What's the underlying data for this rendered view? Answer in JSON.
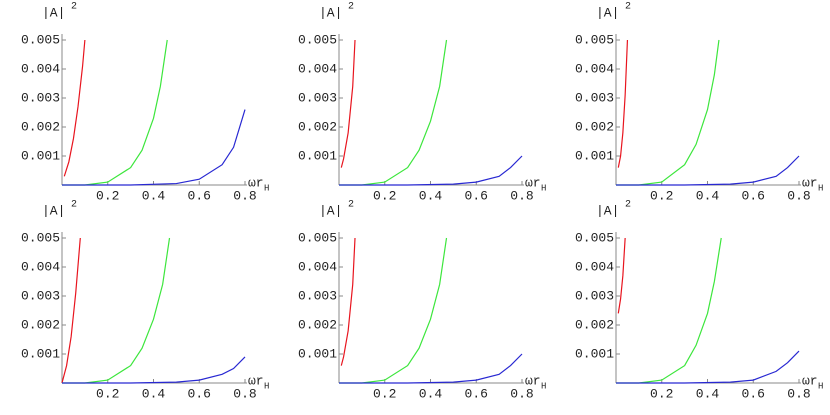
{
  "chart_data": [
    {
      "type": "line",
      "ylabel": "|A|",
      "ylabel_sup": "2",
      "xlabel": "ωr",
      "xlabel_sub": "H",
      "xlim": [
        0,
        0.8
      ],
      "ylim": [
        0,
        0.005
      ],
      "xticks": [
        0.2,
        0.4,
        0.6,
        0.8
      ],
      "yticks": [
        0.001,
        0.002,
        0.003,
        0.004,
        0.005
      ],
      "series": [
        {
          "color": "#e8141e",
          "x": [
            0.01,
            0.03,
            0.05,
            0.07,
            0.09,
            0.1
          ],
          "values": [
            0.0003,
            0.0008,
            0.0016,
            0.0027,
            0.0041,
            0.005
          ]
        },
        {
          "color": "#3ce63c",
          "x": [
            0,
            0.1,
            0.2,
            0.3,
            0.35,
            0.4,
            0.43,
            0.46
          ],
          "values": [
            0,
            0,
            0.0001,
            0.0006,
            0.0012,
            0.0023,
            0.0034,
            0.005
          ]
        },
        {
          "color": "#2828d2",
          "x": [
            0,
            0.3,
            0.5,
            0.6,
            0.7,
            0.75,
            0.8
          ],
          "values": [
            0,
            0,
            5e-05,
            0.0002,
            0.0007,
            0.0013,
            0.0026
          ]
        }
      ]
    },
    {
      "type": "line",
      "ylabel": "|A|",
      "ylabel_sup": "2",
      "xlabel": "ωr",
      "xlabel_sub": "H",
      "xlim": [
        0,
        0.8
      ],
      "ylim": [
        0,
        0.005
      ],
      "xticks": [
        0.2,
        0.4,
        0.6,
        0.8
      ],
      "yticks": [
        0.001,
        0.002,
        0.003,
        0.004,
        0.005
      ],
      "series": [
        {
          "color": "#e8141e",
          "x": [
            0.01,
            0.02,
            0.04,
            0.06,
            0.07
          ],
          "values": [
            0.0006,
            0.0009,
            0.0018,
            0.0034,
            0.005
          ]
        },
        {
          "color": "#3ce63c",
          "x": [
            0,
            0.1,
            0.2,
            0.3,
            0.35,
            0.4,
            0.44,
            0.47
          ],
          "values": [
            0,
            0,
            0.0001,
            0.0006,
            0.0012,
            0.0022,
            0.0034,
            0.005
          ]
        },
        {
          "color": "#2828d2",
          "x": [
            0,
            0.3,
            0.5,
            0.6,
            0.7,
            0.75,
            0.8
          ],
          "values": [
            0,
            0,
            3e-05,
            0.0001,
            0.0003,
            0.0006,
            0.001
          ]
        }
      ]
    },
    {
      "type": "line",
      "ylabel": "|A|",
      "ylabel_sup": "2",
      "xlabel": "ωr",
      "xlabel_sub": "H",
      "xlim": [
        0,
        0.8
      ],
      "ylim": [
        0,
        0.005
      ],
      "xticks": [
        0.2,
        0.4,
        0.6,
        0.8
      ],
      "yticks": [
        0.001,
        0.002,
        0.003,
        0.004,
        0.005
      ],
      "series": [
        {
          "color": "#e8141e",
          "x": [
            0.01,
            0.02,
            0.03,
            0.04,
            0.05
          ],
          "values": [
            0.0006,
            0.001,
            0.0018,
            0.0031,
            0.005
          ]
        },
        {
          "color": "#3ce63c",
          "x": [
            0,
            0.1,
            0.2,
            0.3,
            0.35,
            0.4,
            0.43,
            0.45
          ],
          "values": [
            0,
            0,
            0.0001,
            0.0007,
            0.0014,
            0.0026,
            0.0038,
            0.005
          ]
        },
        {
          "color": "#2828d2",
          "x": [
            0,
            0.3,
            0.5,
            0.6,
            0.7,
            0.75,
            0.8
          ],
          "values": [
            0,
            0,
            3e-05,
            0.0001,
            0.0003,
            0.0006,
            0.001
          ]
        }
      ]
    },
    {
      "type": "line",
      "ylabel": "|A|",
      "ylabel_sup": "2",
      "xlabel": "ωr",
      "xlabel_sub": "H",
      "xlim": [
        0,
        0.8
      ],
      "ylim": [
        0,
        0.005
      ],
      "xticks": [
        0.2,
        0.4,
        0.6,
        0.8
      ],
      "yticks": [
        0.001,
        0.002,
        0.003,
        0.004,
        0.005
      ],
      "series": [
        {
          "color": "#e8141e",
          "x": [
            0,
            0.02,
            0.04,
            0.06,
            0.08
          ],
          "values": [
            0,
            0.0006,
            0.0016,
            0.0031,
            0.005
          ]
        },
        {
          "color": "#3ce63c",
          "x": [
            0,
            0.1,
            0.2,
            0.3,
            0.35,
            0.4,
            0.44,
            0.47
          ],
          "values": [
            0,
            0,
            0.0001,
            0.0006,
            0.0012,
            0.0022,
            0.0034,
            0.005
          ]
        },
        {
          "color": "#2828d2",
          "x": [
            0,
            0.3,
            0.5,
            0.6,
            0.7,
            0.75,
            0.8
          ],
          "values": [
            0,
            0,
            3e-05,
            0.0001,
            0.0003,
            0.0005,
            0.0009
          ]
        }
      ]
    },
    {
      "type": "line",
      "ylabel": "|A|",
      "ylabel_sup": "2",
      "xlabel": "ωr",
      "xlabel_sub": "H",
      "xlim": [
        0,
        0.8
      ],
      "ylim": [
        0,
        0.005
      ],
      "xticks": [
        0.2,
        0.4,
        0.6,
        0.8
      ],
      "yticks": [
        0.001,
        0.002,
        0.003,
        0.004,
        0.005
      ],
      "series": [
        {
          "color": "#e8141e",
          "x": [
            0.01,
            0.02,
            0.04,
            0.06,
            0.07
          ],
          "values": [
            0.0006,
            0.0009,
            0.0018,
            0.0034,
            0.005
          ]
        },
        {
          "color": "#3ce63c",
          "x": [
            0,
            0.1,
            0.2,
            0.3,
            0.35,
            0.4,
            0.44,
            0.47
          ],
          "values": [
            0,
            0,
            0.0001,
            0.0006,
            0.0012,
            0.0022,
            0.0034,
            0.005
          ]
        },
        {
          "color": "#2828d2",
          "x": [
            0,
            0.3,
            0.5,
            0.6,
            0.7,
            0.75,
            0.8
          ],
          "values": [
            0,
            0,
            3e-05,
            0.0001,
            0.0003,
            0.0006,
            0.001
          ]
        }
      ]
    },
    {
      "type": "line",
      "ylabel": "|A|",
      "ylabel_sup": "2",
      "xlabel": "ωr",
      "xlabel_sub": "H",
      "xlim": [
        0,
        0.8
      ],
      "ylim": [
        0,
        0.005
      ],
      "xticks": [
        0.2,
        0.4,
        0.6,
        0.8
      ],
      "yticks": [
        0.001,
        0.002,
        0.003,
        0.004,
        0.005
      ],
      "series": [
        {
          "color": "#e8141e",
          "x": [
            0.01,
            0.02,
            0.03,
            0.04
          ],
          "values": [
            0.0024,
            0.0029,
            0.0037,
            0.005
          ]
        },
        {
          "color": "#3ce63c",
          "x": [
            0,
            0.1,
            0.2,
            0.3,
            0.35,
            0.4,
            0.43,
            0.46
          ],
          "values": [
            0,
            0,
            0.0001,
            0.0006,
            0.0013,
            0.0024,
            0.0035,
            0.005
          ]
        },
        {
          "color": "#2828d2",
          "x": [
            0,
            0.3,
            0.5,
            0.6,
            0.7,
            0.75,
            0.8
          ],
          "values": [
            0,
            0,
            3e-05,
            0.0001,
            0.0004,
            0.0007,
            0.0011
          ]
        }
      ]
    }
  ]
}
